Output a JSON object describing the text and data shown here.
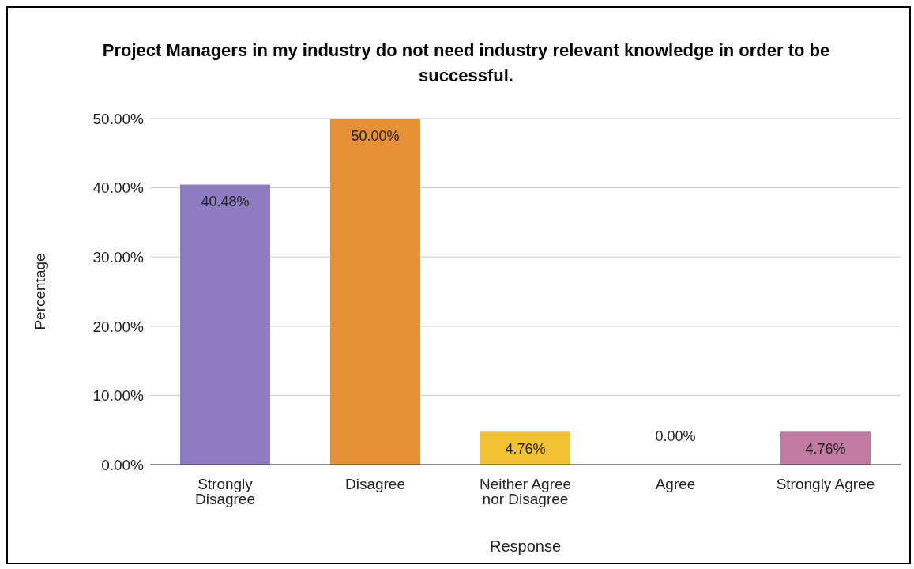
{
  "chart_data": {
    "type": "bar",
    "title": "Project Managers in my industry do not need industry relevant knowledge in order to be successful.",
    "xlabel": "Response",
    "ylabel": "Percentage",
    "categories": [
      "Strongly Disagree",
      "Disagree",
      "Neither Agree nor Disagree",
      "Agree",
      "Strongly Agree"
    ],
    "values": [
      40.48,
      50,
      4.76,
      0,
      4.76
    ],
    "colors": [
      "#8e7cc3",
      "#e69138",
      "#f1c232",
      "#6aa84f",
      "#c27ba0"
    ],
    "value_labels": [
      "40.48%",
      "50.00%",
      "4.76%",
      "0.00%",
      "4.76%"
    ],
    "ylim": [
      0,
      50
    ],
    "yticks": [
      {
        "value": 0,
        "label": "0.00%"
      },
      {
        "value": 10,
        "label": "10.00%"
      },
      {
        "value": 20,
        "label": "20.00%"
      },
      {
        "value": 30,
        "label": "30.00%"
      },
      {
        "value": 40,
        "label": "40.00%"
      },
      {
        "value": 50,
        "label": "50.00%"
      }
    ],
    "grid": "y",
    "legend": false
  }
}
